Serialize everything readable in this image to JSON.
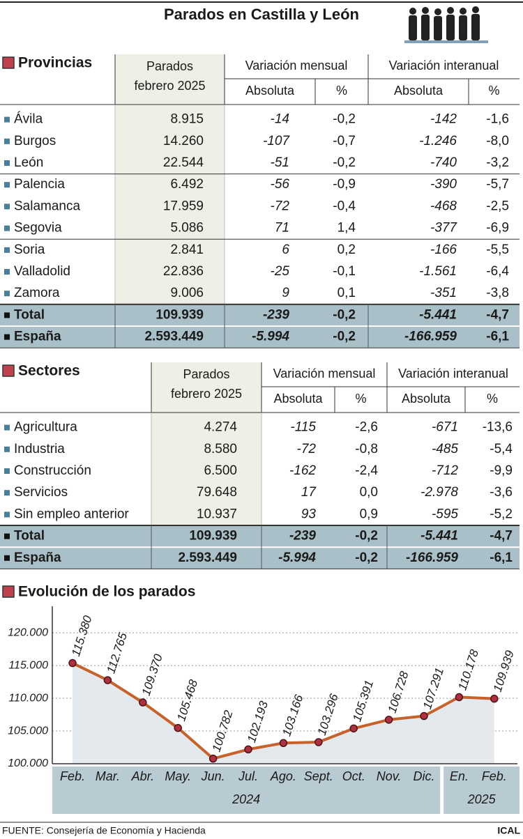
{
  "header": {
    "title": "Parados en Castilla y León"
  },
  "provincias": {
    "title": "Provincias",
    "head": {
      "parados": [
        "Parados",
        "febrero 2025"
      ],
      "mensual": "Variación mensual",
      "interanual": "Variación interanual",
      "sub": [
        "Absoluta",
        "%",
        "Absoluta",
        "%"
      ]
    },
    "rows": [
      [
        "Ávila",
        "8.915",
        "-14",
        "-0,2",
        "-142",
        "-1,6"
      ],
      [
        "Burgos",
        "14.260",
        "-107",
        "-0,7",
        "-1.246",
        "-8,0"
      ],
      [
        "León",
        "22.544",
        "-51",
        "-0,2",
        "-740",
        "-3,2"
      ],
      [
        "Palencia",
        "6.492",
        "-56",
        "-0,9",
        "-390",
        "-5,7"
      ],
      [
        "Salamanca",
        "17.959",
        "-72",
        "-0,4",
        "-468",
        "-2,5"
      ],
      [
        "Segovia",
        "5.086",
        "71",
        "1,4",
        "-377",
        "-6,9"
      ],
      [
        "Soria",
        "2.841",
        "6",
        "0,2",
        "-166",
        "-5,5"
      ],
      [
        "Valladolid",
        "22.836",
        "-25",
        "-0,1",
        "-1.561",
        "-6,4"
      ],
      [
        "Zamora",
        "9.006",
        "9",
        "0,1",
        "-351",
        "-3,8"
      ]
    ],
    "summary_rows": [
      [
        "Total",
        "109.939",
        "-239",
        "-0,2",
        "-5.441",
        "-4,7"
      ],
      [
        "España",
        "2.593.449",
        "-5.994",
        "-0,2",
        "-166.959",
        "-6,1"
      ]
    ]
  },
  "sectores": {
    "title": "Sectores",
    "head": {
      "parados": [
        "Parados",
        "febrero 2025"
      ],
      "mensual": "Variación mensual",
      "interanual": "Variación interanual",
      "sub": [
        "Absoluta",
        "%",
        "Absoluta",
        "%"
      ]
    },
    "rows": [
      [
        "Agricultura",
        "4.274",
        "-115",
        "-2,6",
        "-671",
        "-13,6"
      ],
      [
        "Industria",
        "8.580",
        "-72",
        "-0,8",
        "-485",
        "-5,4"
      ],
      [
        "Construcción",
        "6.500",
        "-162",
        "-2,4",
        "-712",
        "-9,9"
      ],
      [
        "Servicios",
        "79.648",
        "17",
        "0,0",
        "-2.978",
        "-3,6"
      ],
      [
        "Sin empleo anterior",
        "10.937",
        "93",
        "0,9",
        "-595",
        "-5,2"
      ]
    ],
    "summary_rows": [
      [
        "Total",
        "109.939",
        "-239",
        "-0,2",
        "-5.441",
        "-4,7"
      ],
      [
        "España",
        "2.593.449",
        "-5.994",
        "-0,2",
        "-166.959",
        "-6,1"
      ]
    ]
  },
  "chart_data": {
    "type": "line",
    "title": "Evolución de los parados",
    "groups": [
      {
        "label": "2024",
        "categories": [
          "Feb.",
          "Mar.",
          "Abr.",
          "May.",
          "Jun.",
          "Jul.",
          "Ago.",
          "Sept.",
          "Oct.",
          "Nov.",
          "Dic."
        ]
      },
      {
        "label": "2025",
        "categories": [
          "En.",
          "Feb."
        ]
      }
    ],
    "values": [
      115380,
      112765,
      109370,
      105468,
      100782,
      102193,
      103166,
      103296,
      105391,
      106728,
      107291,
      110178,
      109939
    ],
    "value_labels": [
      "115.380",
      "112.765",
      "109.370",
      "105.468",
      "100.782",
      "102.193",
      "103.166",
      "103.296",
      "105.391",
      "106.728",
      "107.291",
      "110.178",
      "109.939"
    ],
    "color": "#c8622b",
    "marker_color": "#b03040",
    "area_color": "#e4e9ed",
    "ylim": [
      100000,
      123000
    ],
    "yticks": [
      {
        "value": 100000,
        "label": "100.000"
      },
      {
        "value": 105000,
        "label": "105.000"
      },
      {
        "value": 110000,
        "label": "110.000"
      },
      {
        "value": 115000,
        "label": "115.000"
      },
      {
        "value": 120000,
        "label": "120.000"
      }
    ],
    "grid": true
  },
  "footer": {
    "source": "FUENTE: Consejería de Economía y Hacienda",
    "credit": "ICAL"
  }
}
